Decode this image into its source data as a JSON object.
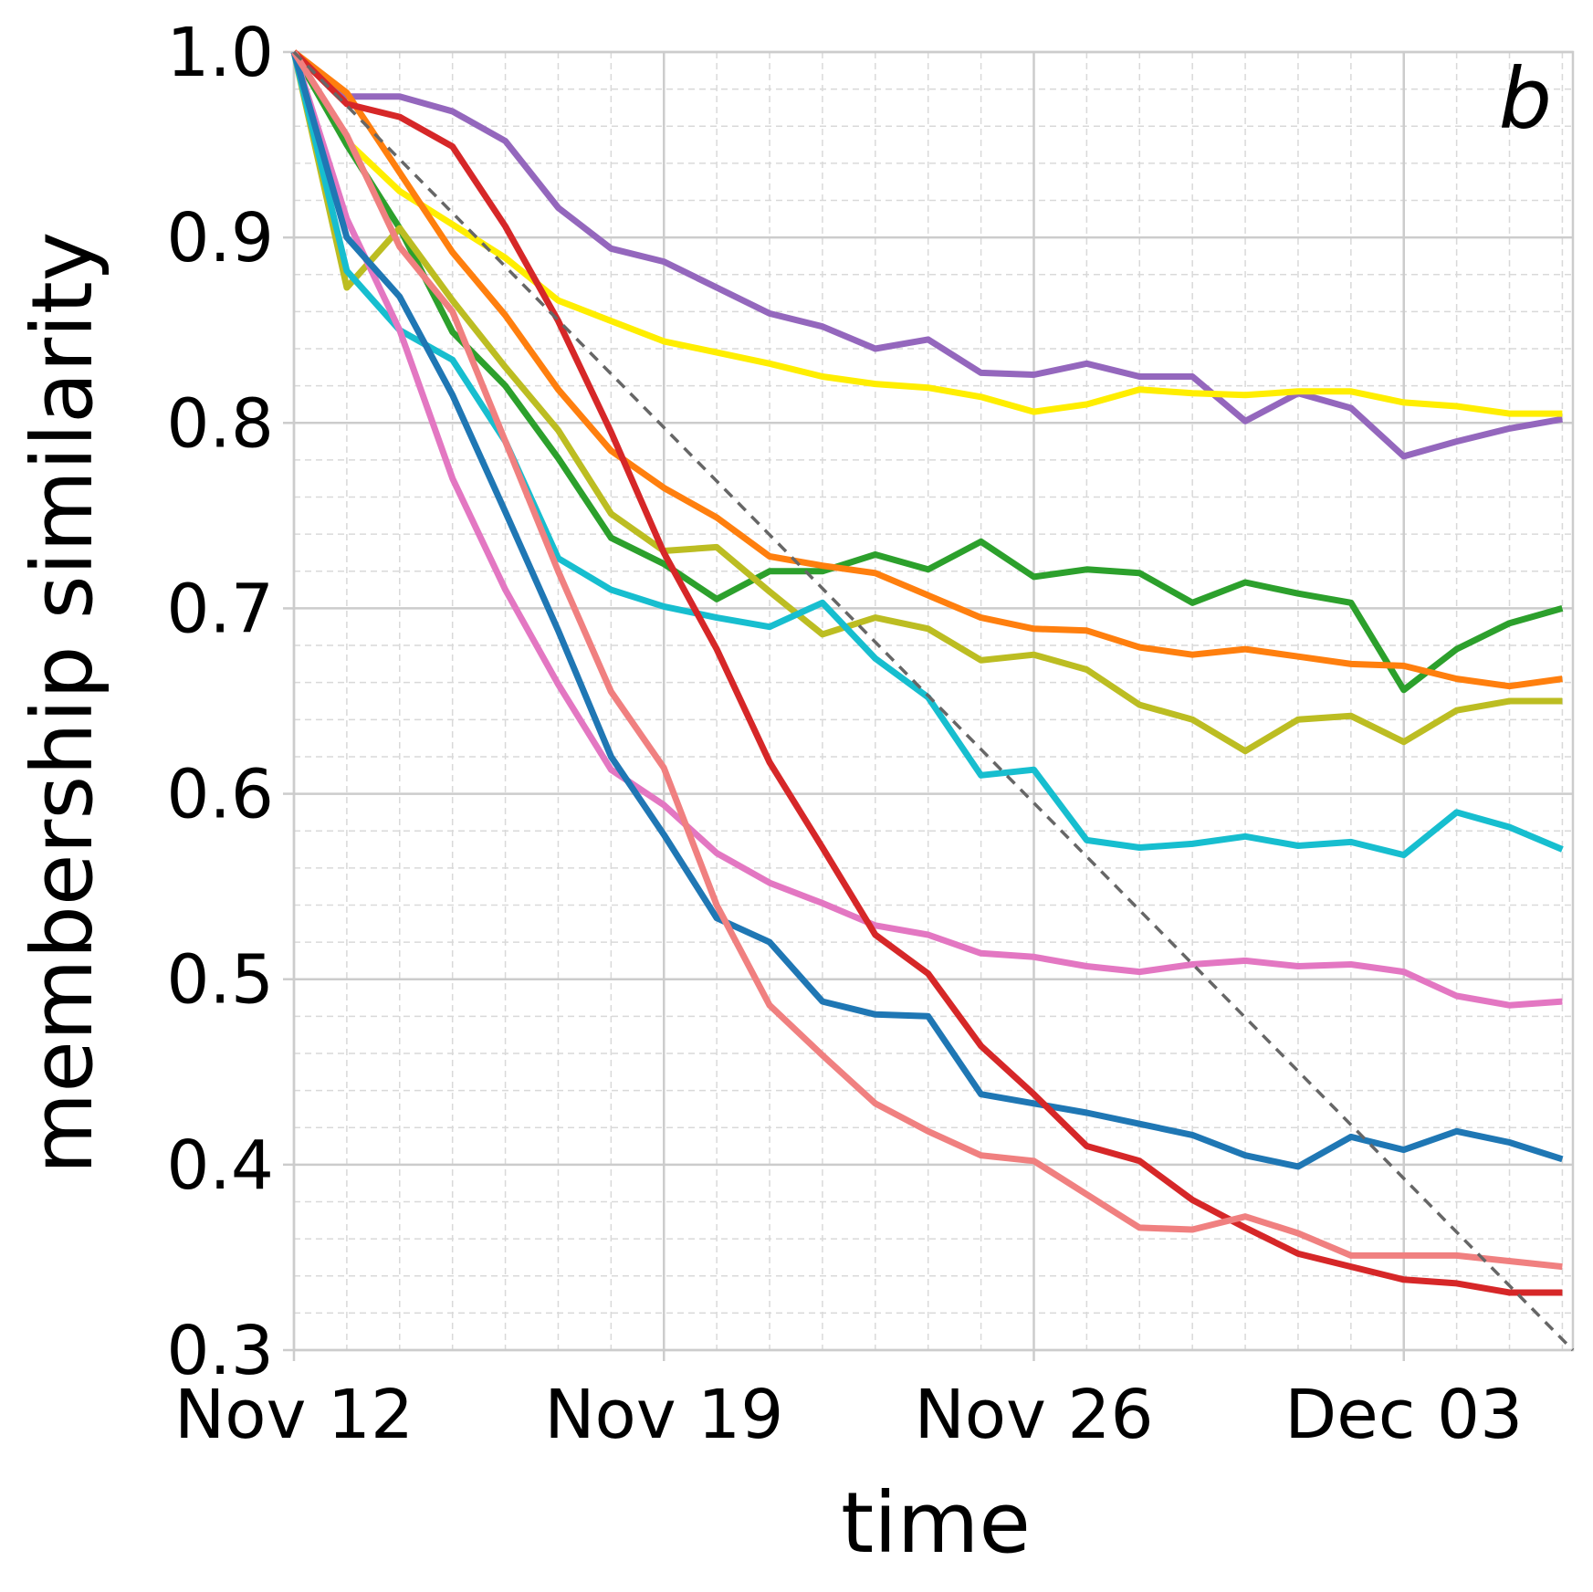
{
  "chart_data": {
    "type": "line",
    "panel_label": "b",
    "xlabel": "time",
    "ylabel": "membership similarity",
    "ylim": [
      0.3,
      1.0
    ],
    "xlim_days": [
      0,
      24.2
    ],
    "x_ticks": [
      {
        "day": 0,
        "label": "Nov 12"
      },
      {
        "day": 7,
        "label": "Nov 19"
      },
      {
        "day": 14,
        "label": "Nov 26"
      },
      {
        "day": 21,
        "label": "Dec 03"
      }
    ],
    "y_ticks": [
      {
        "value": 0.3,
        "label": "0.3"
      },
      {
        "value": 0.4,
        "label": "0.4"
      },
      {
        "value": 0.5,
        "label": "0.5"
      },
      {
        "value": 0.6,
        "label": "0.6"
      },
      {
        "value": 0.7,
        "label": "0.7"
      },
      {
        "value": 0.8,
        "label": "0.8"
      },
      {
        "value": 0.9,
        "label": "0.9"
      },
      {
        "value": 1.0,
        "label": "1.0"
      }
    ],
    "grid": true,
    "reference_line": {
      "x": [
        0,
        24.2
      ],
      "y": [
        1.0,
        0.3
      ],
      "color": "#666666",
      "style": "dashed"
    },
    "x_days": [
      0,
      1,
      2,
      3,
      4,
      5,
      6,
      7,
      8,
      9,
      10,
      11,
      12,
      13,
      14,
      15,
      16,
      17,
      18,
      19,
      20,
      21,
      22,
      23,
      24
    ],
    "series": [
      {
        "name": "purple",
        "color": "#9467bd",
        "values": [
          1.0,
          0.976,
          0.976,
          0.968,
          0.952,
          0.916,
          0.894,
          0.887,
          0.873,
          0.859,
          0.852,
          0.84,
          0.845,
          0.827,
          0.826,
          0.832,
          0.825,
          0.825,
          0.801,
          0.816,
          0.808,
          0.782,
          0.79,
          0.797,
          0.802
        ]
      },
      {
        "name": "yellow",
        "color": "#ffee00",
        "values": [
          1.0,
          0.952,
          0.925,
          0.907,
          0.889,
          0.866,
          0.855,
          0.844,
          0.838,
          0.832,
          0.825,
          0.821,
          0.819,
          0.814,
          0.806,
          0.81,
          0.818,
          0.816,
          0.815,
          0.817,
          0.817,
          0.811,
          0.809,
          0.805,
          0.805
        ]
      },
      {
        "name": "green",
        "color": "#2ca02c",
        "values": [
          1.0,
          0.95,
          0.905,
          0.849,
          0.82,
          0.781,
          0.738,
          0.724,
          0.705,
          0.72,
          0.72,
          0.729,
          0.721,
          0.736,
          0.717,
          0.721,
          0.719,
          0.703,
          0.714,
          0.708,
          0.703,
          0.656,
          0.678,
          0.692,
          0.7
        ]
      },
      {
        "name": "orange",
        "color": "#ff7f0e",
        "values": [
          1.0,
          0.978,
          0.935,
          0.892,
          0.858,
          0.818,
          0.785,
          0.765,
          0.749,
          0.728,
          0.723,
          0.719,
          0.707,
          0.695,
          0.689,
          0.688,
          0.679,
          0.675,
          0.678,
          0.674,
          0.67,
          0.669,
          0.662,
          0.658,
          0.662
        ]
      },
      {
        "name": "olive",
        "color": "#bcbd22",
        "values": [
          1.0,
          0.873,
          0.905,
          0.866,
          0.83,
          0.796,
          0.751,
          0.731,
          0.733,
          0.709,
          0.686,
          0.695,
          0.689,
          0.672,
          0.675,
          0.667,
          0.648,
          0.64,
          0.623,
          0.64,
          0.642,
          0.628,
          0.645,
          0.65,
          0.65
        ]
      },
      {
        "name": "cyan",
        "color": "#17becf",
        "values": [
          1.0,
          0.882,
          0.85,
          0.834,
          0.79,
          0.727,
          0.71,
          0.701,
          0.695,
          0.69,
          0.703,
          0.673,
          0.652,
          0.61,
          0.613,
          0.575,
          0.571,
          0.573,
          0.577,
          0.572,
          0.574,
          0.567,
          0.59,
          0.582,
          0.57
        ]
      },
      {
        "name": "pink",
        "color": "#e377c2",
        "values": [
          1.0,
          0.91,
          0.85,
          0.77,
          0.71,
          0.659,
          0.613,
          0.594,
          0.568,
          0.552,
          0.541,
          0.529,
          0.524,
          0.514,
          0.512,
          0.507,
          0.504,
          0.508,
          0.51,
          0.507,
          0.508,
          0.504,
          0.491,
          0.486,
          0.488
        ]
      },
      {
        "name": "blue",
        "color": "#1f77b4",
        "values": [
          1.0,
          0.9,
          0.868,
          0.815,
          0.752,
          0.688,
          0.62,
          0.578,
          0.533,
          0.52,
          0.488,
          0.481,
          0.48,
          0.438,
          0.433,
          0.428,
          0.422,
          0.416,
          0.405,
          0.399,
          0.415,
          0.408,
          0.418,
          0.412,
          0.403
        ]
      },
      {
        "name": "red",
        "color": "#d62728",
        "values": [
          1.0,
          0.972,
          0.965,
          0.949,
          0.906,
          0.855,
          0.795,
          0.73,
          0.678,
          0.617,
          0.571,
          0.524,
          0.503,
          0.464,
          0.438,
          0.41,
          0.402,
          0.381,
          0.366,
          0.352,
          0.345,
          0.338,
          0.336,
          0.331,
          0.331
        ]
      },
      {
        "name": "salmon",
        "color": "#f08080",
        "values": [
          1.0,
          0.955,
          0.895,
          0.86,
          0.79,
          0.72,
          0.655,
          0.614,
          0.54,
          0.486,
          0.459,
          0.433,
          0.418,
          0.405,
          0.402,
          0.384,
          0.366,
          0.365,
          0.372,
          0.363,
          0.351,
          0.351,
          0.351,
          0.348,
          0.345
        ]
      }
    ]
  }
}
